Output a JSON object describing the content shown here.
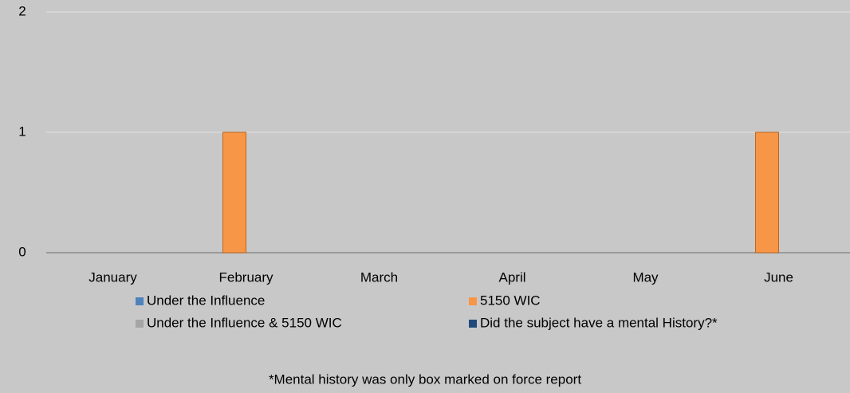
{
  "chart_data": {
    "type": "bar",
    "categories": [
      "January",
      "February",
      "March",
      "April",
      "May",
      "June"
    ],
    "series": [
      {
        "name": "Under the Influence",
        "color": "#4f81bd",
        "values": [
          0,
          0,
          0,
          0,
          0,
          0
        ]
      },
      {
        "name": "5150 WIC",
        "color": "#f79646",
        "values": [
          0,
          1,
          0,
          0,
          0,
          1
        ]
      },
      {
        "name": "Under the Influence & 5150 WIC",
        "color": "#a5a5a5",
        "values": [
          0,
          0,
          0,
          0,
          0,
          0
        ]
      },
      {
        "name": "Did the subject have a mental History?*",
        "color": "#1f497d",
        "values": [
          0,
          0,
          0,
          0,
          0,
          0
        ]
      }
    ],
    "ylim": [
      0,
      2
    ],
    "yticks": [
      0,
      1,
      2
    ],
    "grid": true,
    "annotation": "*Mental history was only box marked on force report"
  }
}
